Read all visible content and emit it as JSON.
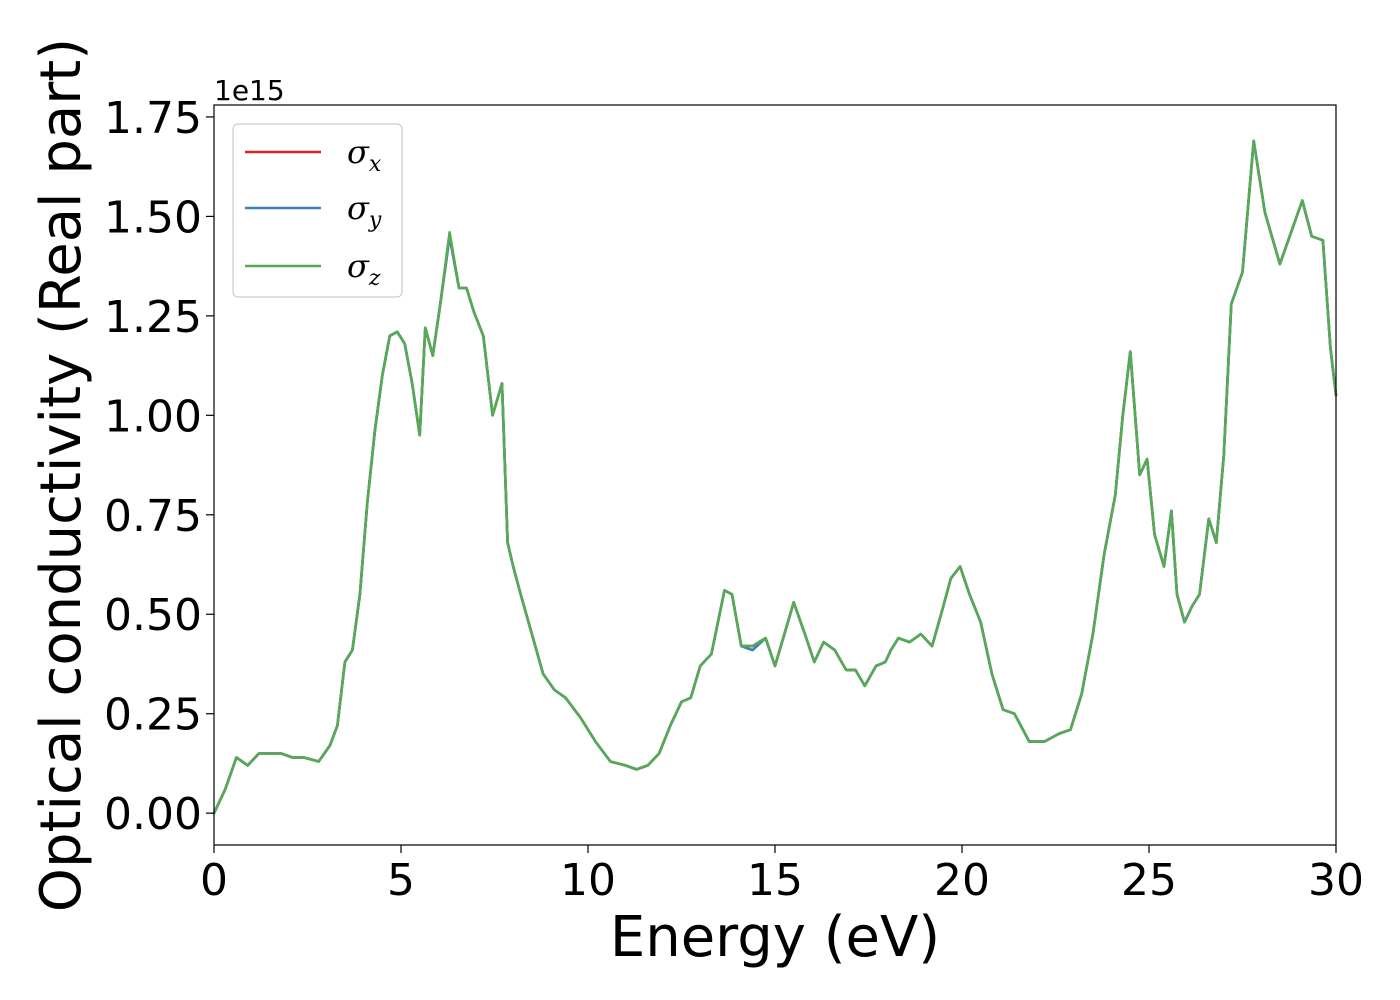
{
  "chart_data": {
    "type": "line",
    "title": "",
    "xlabel": "Energy (eV)",
    "ylabel": "Optical conductivity (Real part)",
    "y_offset_label": "1e15",
    "xlim": [
      0,
      30
    ],
    "ylim": [
      -0.08,
      1.78
    ],
    "x_ticks": [
      0,
      5,
      10,
      15,
      20,
      25,
      30
    ],
    "x_tick_labels": [
      "0",
      "5",
      "10",
      "15",
      "20",
      "25",
      "30"
    ],
    "y_ticks": [
      0.0,
      0.25,
      0.5,
      0.75,
      1.0,
      1.25,
      1.5,
      1.75
    ],
    "y_tick_labels": [
      "0.00",
      "0.25",
      "0.50",
      "0.75",
      "1.00",
      "1.25",
      "1.50",
      "1.75"
    ],
    "grid": false,
    "legend_position": "top-left",
    "x": [
      0.0,
      0.3,
      0.6,
      0.9,
      1.2,
      1.5,
      1.8,
      2.1,
      2.4,
      2.8,
      3.1,
      3.3,
      3.5,
      3.7,
      3.9,
      4.1,
      4.3,
      4.5,
      4.7,
      4.9,
      5.1,
      5.3,
      5.5,
      5.65,
      5.85,
      6.05,
      6.3,
      6.55,
      6.75,
      6.95,
      7.2,
      7.45,
      7.7,
      7.85,
      8.0,
      8.2,
      8.5,
      8.8,
      9.1,
      9.4,
      9.8,
      10.2,
      10.6,
      11.0,
      11.3,
      11.6,
      11.9,
      12.2,
      12.5,
      12.75,
      13.0,
      13.3,
      13.65,
      13.85,
      14.1,
      14.4,
      14.75,
      15.0,
      15.25,
      15.5,
      15.8,
      16.05,
      16.3,
      16.6,
      16.9,
      17.15,
      17.4,
      17.7,
      17.95,
      18.1,
      18.3,
      18.6,
      18.9,
      19.2,
      19.5,
      19.7,
      19.95,
      20.2,
      20.5,
      20.8,
      21.1,
      21.4,
      21.8,
      22.2,
      22.6,
      22.9,
      23.2,
      23.5,
      23.8,
      24.1,
      24.3,
      24.5,
      24.75,
      24.95,
      25.15,
      25.4,
      25.6,
      25.75,
      25.95,
      26.15,
      26.35,
      26.6,
      26.8,
      27.0,
      27.2,
      27.5,
      27.8,
      28.1,
      28.5,
      28.8,
      29.1,
      29.35,
      29.65,
      29.85,
      30.0
    ],
    "series": [
      {
        "name": "σx",
        "color": "#d62728",
        "values": [
          0.0,
          0.06,
          0.14,
          0.12,
          0.15,
          0.15,
          0.15,
          0.14,
          0.14,
          0.13,
          0.17,
          0.22,
          0.38,
          0.41,
          0.55,
          0.78,
          0.96,
          1.1,
          1.2,
          1.21,
          1.18,
          1.08,
          0.95,
          1.22,
          1.15,
          1.28,
          1.45,
          1.32,
          1.32,
          1.26,
          1.2,
          1.0,
          1.08,
          0.68,
          0.62,
          0.55,
          0.45,
          0.35,
          0.31,
          0.29,
          0.24,
          0.18,
          0.13,
          0.12,
          0.11,
          0.12,
          0.15,
          0.22,
          0.28,
          0.29,
          0.37,
          0.4,
          0.56,
          0.55,
          0.42,
          0.42,
          0.44,
          0.37,
          0.45,
          0.53,
          0.45,
          0.38,
          0.43,
          0.41,
          0.36,
          0.36,
          0.32,
          0.37,
          0.38,
          0.41,
          0.44,
          0.43,
          0.45,
          0.42,
          0.52,
          0.59,
          0.62,
          0.55,
          0.48,
          0.35,
          0.26,
          0.25,
          0.18,
          0.18,
          0.2,
          0.21,
          0.3,
          0.45,
          0.65,
          0.8,
          1.0,
          1.16,
          0.85,
          0.89,
          0.7,
          0.62,
          0.76,
          0.55,
          0.48,
          0.52,
          0.55,
          0.74,
          0.68,
          0.9,
          1.28,
          1.36,
          1.69,
          1.51,
          1.38,
          1.46,
          1.54,
          1.45,
          1.44,
          1.17,
          1.05
        ]
      },
      {
        "name": "σy",
        "color": "#3a7fb6",
        "values": [
          0.0,
          0.06,
          0.14,
          0.12,
          0.15,
          0.15,
          0.15,
          0.14,
          0.14,
          0.13,
          0.17,
          0.22,
          0.38,
          0.41,
          0.55,
          0.78,
          0.96,
          1.1,
          1.2,
          1.21,
          1.18,
          1.08,
          0.95,
          1.22,
          1.15,
          1.28,
          1.45,
          1.32,
          1.32,
          1.26,
          1.2,
          1.0,
          1.08,
          0.68,
          0.62,
          0.55,
          0.45,
          0.35,
          0.31,
          0.29,
          0.24,
          0.18,
          0.13,
          0.12,
          0.11,
          0.12,
          0.15,
          0.22,
          0.28,
          0.29,
          0.37,
          0.4,
          0.56,
          0.55,
          0.42,
          0.41,
          0.44,
          0.37,
          0.45,
          0.53,
          0.45,
          0.38,
          0.43,
          0.41,
          0.36,
          0.36,
          0.32,
          0.37,
          0.38,
          0.41,
          0.44,
          0.43,
          0.45,
          0.42,
          0.52,
          0.59,
          0.62,
          0.55,
          0.48,
          0.35,
          0.26,
          0.25,
          0.18,
          0.18,
          0.2,
          0.21,
          0.3,
          0.45,
          0.65,
          0.8,
          1.0,
          1.16,
          0.85,
          0.89,
          0.7,
          0.62,
          0.76,
          0.55,
          0.48,
          0.52,
          0.55,
          0.74,
          0.68,
          0.9,
          1.28,
          1.36,
          1.69,
          1.51,
          1.38,
          1.46,
          1.54,
          1.45,
          1.44,
          1.17,
          1.05
        ]
      },
      {
        "name": "σz",
        "color": "#55ab55",
        "values": [
          0.0,
          0.06,
          0.14,
          0.12,
          0.15,
          0.15,
          0.15,
          0.14,
          0.14,
          0.13,
          0.17,
          0.22,
          0.38,
          0.41,
          0.55,
          0.78,
          0.96,
          1.1,
          1.2,
          1.21,
          1.18,
          1.08,
          0.95,
          1.22,
          1.15,
          1.28,
          1.46,
          1.32,
          1.32,
          1.26,
          1.2,
          1.0,
          1.08,
          0.68,
          0.62,
          0.55,
          0.45,
          0.35,
          0.31,
          0.29,
          0.24,
          0.18,
          0.13,
          0.12,
          0.11,
          0.12,
          0.15,
          0.22,
          0.28,
          0.29,
          0.37,
          0.4,
          0.56,
          0.55,
          0.42,
          0.42,
          0.44,
          0.37,
          0.45,
          0.53,
          0.45,
          0.38,
          0.43,
          0.41,
          0.36,
          0.36,
          0.32,
          0.37,
          0.38,
          0.41,
          0.44,
          0.43,
          0.45,
          0.42,
          0.52,
          0.59,
          0.62,
          0.55,
          0.48,
          0.35,
          0.26,
          0.25,
          0.18,
          0.18,
          0.2,
          0.21,
          0.3,
          0.45,
          0.65,
          0.8,
          1.0,
          1.16,
          0.85,
          0.89,
          0.7,
          0.62,
          0.76,
          0.55,
          0.48,
          0.52,
          0.55,
          0.74,
          0.68,
          0.9,
          1.28,
          1.36,
          1.69,
          1.51,
          1.38,
          1.46,
          1.54,
          1.45,
          1.44,
          1.17,
          1.05
        ]
      }
    ],
    "legend": [
      {
        "symbol": "σ",
        "sub": "x"
      },
      {
        "symbol": "σ",
        "sub": "y"
      },
      {
        "symbol": "σ",
        "sub": "z"
      }
    ]
  }
}
